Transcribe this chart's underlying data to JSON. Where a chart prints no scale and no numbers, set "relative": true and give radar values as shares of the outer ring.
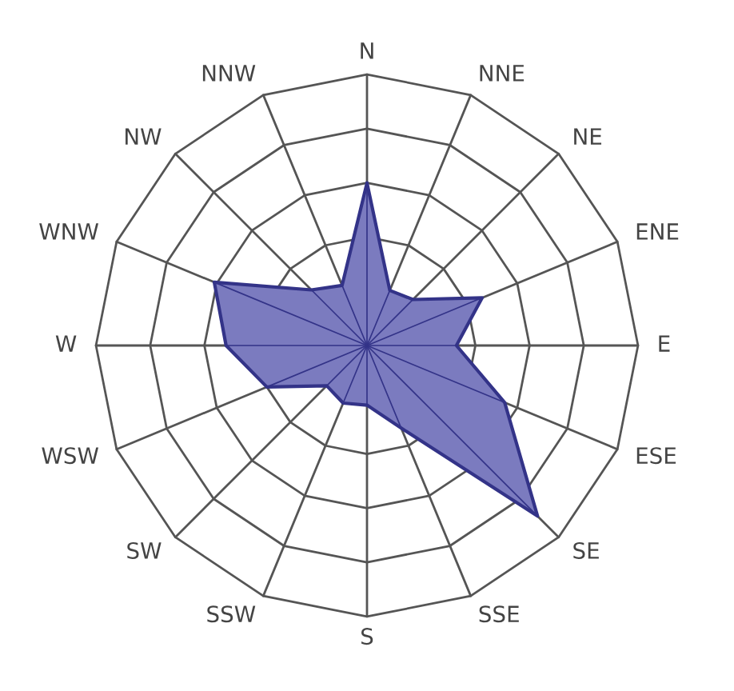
{
  "chart_data": {
    "type": "radar",
    "relative": true,
    "grid": true,
    "marker": "none",
    "categories": [
      "N",
      "NNE",
      "NE",
      "ENE",
      "E",
      "ESE",
      "SE",
      "SSE",
      "S",
      "SSW",
      "SW",
      "WSW",
      "W",
      "WNW",
      "NW",
      "NNW"
    ],
    "series": [
      {
        "color": "#7b7bbf",
        "values": [
          0.6,
          0.22,
          0.24,
          0.46,
          0.33,
          0.55,
          0.89,
          0.33,
          0.22,
          0.23,
          0.21,
          0.4,
          0.52,
          0.61,
          0.29,
          0.24
        ]
      }
    ]
  }
}
